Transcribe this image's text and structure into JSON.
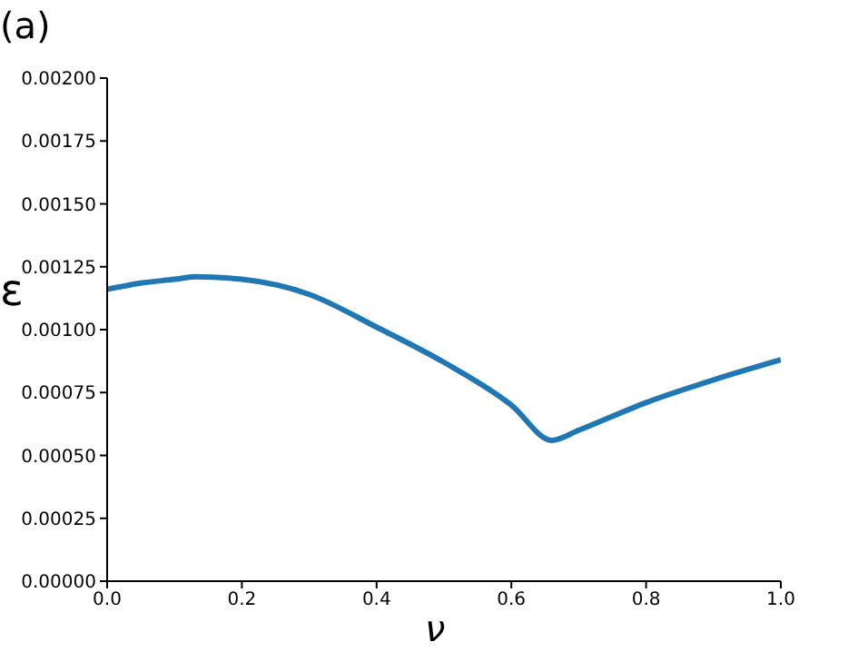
{
  "chart_data": {
    "type": "line",
    "title": "(a)",
    "xlabel": "ν",
    "ylabel": "ε",
    "x": [
      0,
      0.05,
      0.1,
      0.13,
      0.2,
      0.3,
      0.4,
      0.5,
      0.6,
      0.66,
      0.7,
      0.8,
      0.9,
      1.0
    ],
    "series": [
      {
        "color": "#1f77b4",
        "values": [
          0.00116,
          0.001185,
          0.0012,
          0.00121,
          0.0012,
          0.00114,
          0.00101,
          0.00087,
          0.0007,
          0.00056,
          0.0006,
          0.00071,
          0.0008,
          0.00088
        ]
      }
    ],
    "xlim": [
      0,
      1
    ],
    "ylim": [
      0,
      0.002
    ],
    "xticks": [
      {
        "value": 0,
        "label": "0.0"
      },
      0.2,
      0.4,
      0.6,
      0.8,
      {
        "value": 1,
        "label": "1.0"
      }
    ],
    "yticks": [
      {
        "value": 0,
        "label": "0.00000"
      },
      {
        "value": 0.00025,
        "label": "0.00025"
      },
      {
        "value": 0.0005,
        "label": "0.00050"
      },
      {
        "value": 0.00075,
        "label": "0.00075"
      },
      {
        "value": 0.001,
        "label": "0.00100"
      },
      {
        "value": 0.00125,
        "label": "0.00125"
      },
      {
        "value": 0.0015,
        "label": "0.00150"
      },
      {
        "value": 0.00175,
        "label": "0.00175"
      },
      {
        "value": 0.002,
        "label": "0.00200"
      }
    ],
    "grid": false,
    "legend": false,
    "marker": "none",
    "line_style": "solid"
  }
}
